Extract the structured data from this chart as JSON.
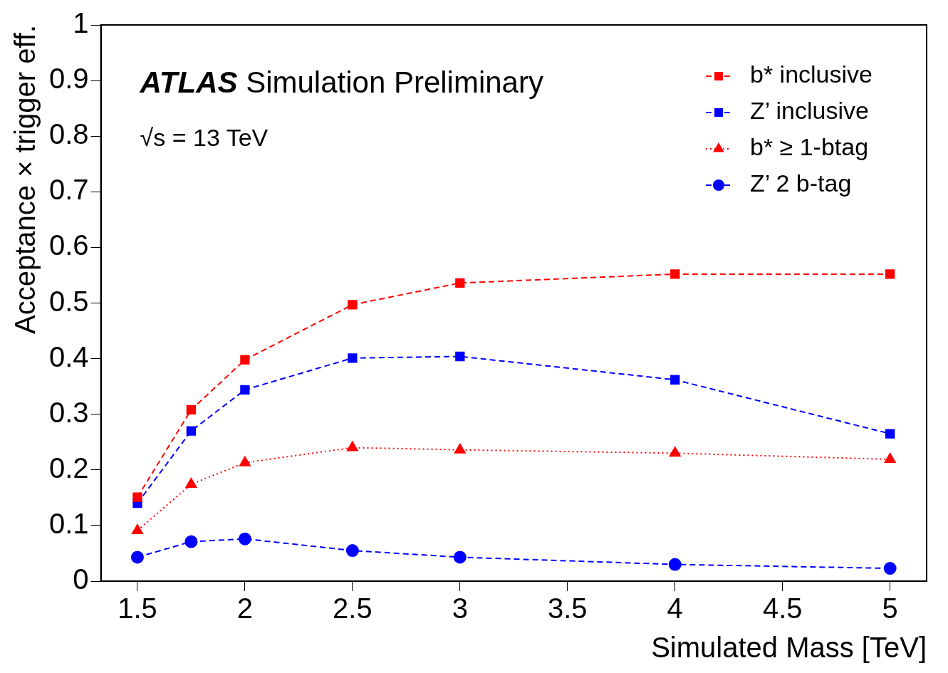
{
  "chart_data": {
    "type": "line",
    "xlabel": "Simulated Mass [TeV]",
    "ylabel": "Acceptance × trigger eff.",
    "x": [
      1.5,
      1.75,
      2,
      2.5,
      3,
      4,
      5
    ],
    "series": [
      {
        "name": "b* inclusive",
        "color": "#ff0000",
        "marker": "square",
        "line_style": "dashed",
        "values": [
          0.151,
          0.308,
          0.398,
          0.497,
          0.536,
          0.552,
          0.552
        ]
      },
      {
        "name": "Z’ inclusive",
        "color": "#0000ff",
        "marker": "square",
        "line_style": "dashed",
        "values": [
          0.14,
          0.27,
          0.344,
          0.401,
          0.404,
          0.362,
          0.265
        ]
      },
      {
        "name": "b* ≥ 1-btag",
        "color": "#ff0000",
        "marker": "triangle",
        "line_style": "dotted",
        "values": [
          0.091,
          0.174,
          0.213,
          0.24,
          0.236,
          0.23,
          0.219
        ]
      },
      {
        "name": "Z’ 2 b-tag",
        "color": "#0000ff",
        "marker": "circle",
        "line_style": "dashed",
        "values": [
          0.043,
          0.071,
          0.076,
          0.055,
          0.043,
          0.03,
          0.023
        ]
      }
    ],
    "xlim": [
      1.33,
      5.17
    ],
    "xticks": [
      1.5,
      2,
      2.5,
      3,
      3.5,
      4,
      4.5,
      5
    ],
    "ylim": [
      0,
      1
    ],
    "yticks": [
      0,
      0.1,
      0.2,
      0.3,
      0.4,
      0.5,
      0.6,
      0.7,
      0.8,
      0.9,
      1
    ],
    "grid": false,
    "legend": "top right",
    "annotations": [
      "ATLAS Simulation Preliminary",
      "√s = 13 TeV"
    ]
  }
}
